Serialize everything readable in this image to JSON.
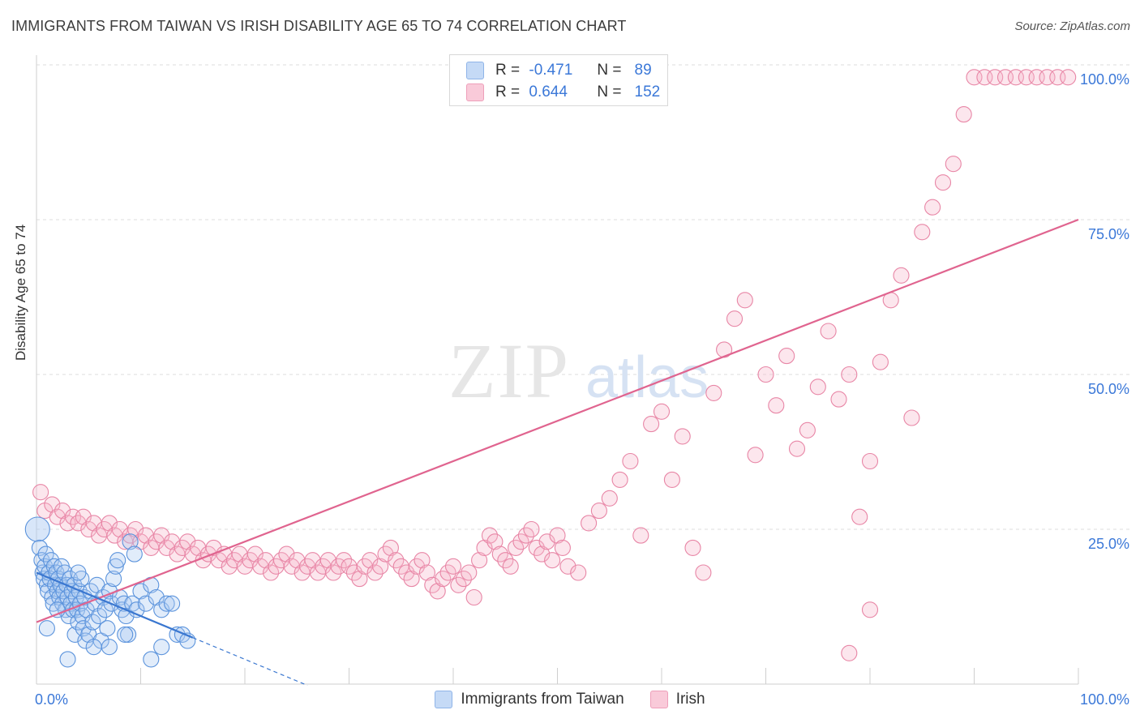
{
  "header": {
    "title": "IMMIGRANTS FROM TAIWAN VS IRISH DISABILITY AGE 65 TO 74 CORRELATION CHART",
    "source": "Source: ZipAtlas.com"
  },
  "watermark": {
    "zip": "ZIP",
    "atlas": "atlas"
  },
  "stats_legend": {
    "rows": [
      {
        "r_label": "R =",
        "r_value": "-0.471",
        "n_label": "N =",
        "n_value": "89",
        "color": "#a9c8f2"
      },
      {
        "r_label": "R =",
        "r_value": "0.644",
        "n_label": "N =",
        "n_value": "152",
        "color": "#f6b8cc"
      }
    ]
  },
  "legend": {
    "taiwan": "Immigrants from Taiwan",
    "irish": "Irish"
  },
  "colors": {
    "taiwan_fill": "#a9c8f2",
    "taiwan_stroke": "#5b93dc",
    "taiwan_line": "#3a77d0",
    "irish_fill": "#f6b8cc",
    "irish_stroke": "#e886a6",
    "irish_line": "#e0648f",
    "tick_text": "#3b78d8"
  },
  "chart_data": {
    "type": "scatter",
    "xlabel": "",
    "ylabel": "Disability Age 65 to 74",
    "xlim": [
      0,
      100
    ],
    "ylim": [
      0,
      100
    ],
    "x_tick_labels": [
      "0.0%",
      "100.0%"
    ],
    "y_tick_labels": [
      {
        "v": 25,
        "label": "25.0%"
      },
      {
        "v": 50,
        "label": "50.0%"
      },
      {
        "v": 75,
        "label": "75.0%"
      },
      {
        "v": 100,
        "label": "100.0%"
      }
    ],
    "grid": true,
    "series": [
      {
        "name": "Immigrants from Taiwan",
        "trend": {
          "x0": 0,
          "y0": 18.0,
          "x1": 15,
          "y1": 7.5,
          "dash_to_x": 26
        },
        "points": [
          [
            0.1,
            25
          ],
          [
            0.3,
            22
          ],
          [
            0.5,
            20
          ],
          [
            0.6,
            18
          ],
          [
            0.7,
            17
          ],
          [
            0.8,
            19
          ],
          [
            0.9,
            21
          ],
          [
            1.0,
            16
          ],
          [
            1.1,
            15
          ],
          [
            1.2,
            18
          ],
          [
            1.3,
            17
          ],
          [
            1.4,
            20
          ],
          [
            1.5,
            14
          ],
          [
            1.6,
            13
          ],
          [
            1.7,
            19
          ],
          [
            1.8,
            16
          ],
          [
            1.9,
            18
          ],
          [
            2.0,
            15
          ],
          [
            2.1,
            17
          ],
          [
            2.2,
            14
          ],
          [
            2.3,
            16
          ],
          [
            2.4,
            19
          ],
          [
            2.5,
            13
          ],
          [
            2.6,
            15
          ],
          [
            2.7,
            18
          ],
          [
            2.8,
            12
          ],
          [
            2.9,
            16
          ],
          [
            3.0,
            14
          ],
          [
            3.1,
            11
          ],
          [
            3.2,
            17
          ],
          [
            3.3,
            13
          ],
          [
            3.4,
            15
          ],
          [
            3.5,
            12
          ],
          [
            3.6,
            16
          ],
          [
            3.7,
            8
          ],
          [
            3.8,
            14
          ],
          [
            3.9,
            12
          ],
          [
            4.0,
            10
          ],
          [
            4.1,
            15
          ],
          [
            4.2,
            13
          ],
          [
            4.3,
            17
          ],
          [
            4.4,
            11
          ],
          [
            4.5,
            9
          ],
          [
            4.6,
            14
          ],
          [
            4.7,
            7
          ],
          [
            4.8,
            12
          ],
          [
            5.0,
            8
          ],
          [
            5.2,
            15
          ],
          [
            5.4,
            10
          ],
          [
            5.6,
            13
          ],
          [
            5.8,
            16
          ],
          [
            6.0,
            11
          ],
          [
            6.2,
            7
          ],
          [
            6.4,
            14
          ],
          [
            6.6,
            12
          ],
          [
            6.8,
            9
          ],
          [
            7.0,
            15
          ],
          [
            7.2,
            13
          ],
          [
            7.4,
            17
          ],
          [
            7.6,
            19
          ],
          [
            7.8,
            20
          ],
          [
            8.0,
            14
          ],
          [
            8.2,
            12
          ],
          [
            8.4,
            13
          ],
          [
            8.6,
            11
          ],
          [
            8.8,
            8
          ],
          [
            9.0,
            23
          ],
          [
            9.2,
            13
          ],
          [
            9.4,
            21
          ],
          [
            9.6,
            12
          ],
          [
            10.0,
            15
          ],
          [
            10.5,
            13
          ],
          [
            11.0,
            16
          ],
          [
            11.5,
            14
          ],
          [
            12.0,
            12
          ],
          [
            12.5,
            13
          ],
          [
            13.0,
            13
          ],
          [
            13.5,
            8
          ],
          [
            14.0,
            8
          ],
          [
            14.5,
            7
          ],
          [
            1.0,
            9
          ],
          [
            2.0,
            12
          ],
          [
            3.0,
            4
          ],
          [
            4.0,
            18
          ],
          [
            5.5,
            6
          ],
          [
            7.0,
            6
          ],
          [
            8.5,
            8
          ],
          [
            11.0,
            4
          ],
          [
            12.0,
            6
          ]
        ]
      },
      {
        "name": "Irish",
        "trend": {
          "x0": 0,
          "y0": 10.0,
          "x1": 100,
          "y1": 75.0
        },
        "points": [
          [
            0.4,
            31
          ],
          [
            0.8,
            28
          ],
          [
            1.5,
            29
          ],
          [
            2.0,
            27
          ],
          [
            2.5,
            28
          ],
          [
            3.0,
            26
          ],
          [
            3.5,
            27
          ],
          [
            4.0,
            26
          ],
          [
            4.5,
            27
          ],
          [
            5.0,
            25
          ],
          [
            5.5,
            26
          ],
          [
            6.0,
            24
          ],
          [
            6.5,
            25
          ],
          [
            7.0,
            26
          ],
          [
            7.5,
            24
          ],
          [
            8.0,
            25
          ],
          [
            8.5,
            23
          ],
          [
            9.0,
            24
          ],
          [
            9.5,
            25
          ],
          [
            10.0,
            23
          ],
          [
            10.5,
            24
          ],
          [
            11.0,
            22
          ],
          [
            11.5,
            23
          ],
          [
            12.0,
            24
          ],
          [
            12.5,
            22
          ],
          [
            13.0,
            23
          ],
          [
            13.5,
            21
          ],
          [
            14.0,
            22
          ],
          [
            14.5,
            23
          ],
          [
            15.0,
            21
          ],
          [
            15.5,
            22
          ],
          [
            16.0,
            20
          ],
          [
            16.5,
            21
          ],
          [
            17.0,
            22
          ],
          [
            17.5,
            20
          ],
          [
            18.0,
            21
          ],
          [
            18.5,
            19
          ],
          [
            19.0,
            20
          ],
          [
            19.5,
            21
          ],
          [
            20.0,
            19
          ],
          [
            20.5,
            20
          ],
          [
            21.0,
            21
          ],
          [
            21.5,
            19
          ],
          [
            22.0,
            20
          ],
          [
            22.5,
            18
          ],
          [
            23.0,
            19
          ],
          [
            23.5,
            20
          ],
          [
            24.0,
            21
          ],
          [
            24.5,
            19
          ],
          [
            25.0,
            20
          ],
          [
            25.5,
            18
          ],
          [
            26.0,
            19
          ],
          [
            26.5,
            20
          ],
          [
            27.0,
            18
          ],
          [
            27.5,
            19
          ],
          [
            28.0,
            20
          ],
          [
            28.5,
            18
          ],
          [
            29.0,
            19
          ],
          [
            29.5,
            20
          ],
          [
            30.0,
            19
          ],
          [
            30.5,
            18
          ],
          [
            31.0,
            17
          ],
          [
            31.5,
            19
          ],
          [
            32.0,
            20
          ],
          [
            32.5,
            18
          ],
          [
            33.0,
            19
          ],
          [
            33.5,
            21
          ],
          [
            34.0,
            22
          ],
          [
            34.5,
            20
          ],
          [
            35.0,
            19
          ],
          [
            35.5,
            18
          ],
          [
            36.0,
            17
          ],
          [
            36.5,
            19
          ],
          [
            37.0,
            20
          ],
          [
            37.5,
            18
          ],
          [
            38.0,
            16
          ],
          [
            38.5,
            15
          ],
          [
            39.0,
            17
          ],
          [
            39.5,
            18
          ],
          [
            40.0,
            19
          ],
          [
            40.5,
            16
          ],
          [
            41.0,
            17
          ],
          [
            41.5,
            18
          ],
          [
            42.0,
            14
          ],
          [
            42.5,
            20
          ],
          [
            43.0,
            22
          ],
          [
            43.5,
            24
          ],
          [
            44.0,
            23
          ],
          [
            44.5,
            21
          ],
          [
            45.0,
            20
          ],
          [
            45.5,
            19
          ],
          [
            46.0,
            22
          ],
          [
            46.5,
            23
          ],
          [
            47.0,
            24
          ],
          [
            47.5,
            25
          ],
          [
            48.0,
            22
          ],
          [
            48.5,
            21
          ],
          [
            49.0,
            23
          ],
          [
            49.5,
            20
          ],
          [
            50.0,
            24
          ],
          [
            50.5,
            22
          ],
          [
            51.0,
            19
          ],
          [
            52.0,
            18
          ],
          [
            53.0,
            26
          ],
          [
            54.0,
            28
          ],
          [
            55.0,
            30
          ],
          [
            56.0,
            33
          ],
          [
            57.0,
            36
          ],
          [
            58.0,
            24
          ],
          [
            59.0,
            42
          ],
          [
            60.0,
            44
          ],
          [
            61.0,
            33
          ],
          [
            62.0,
            40
          ],
          [
            63.0,
            22
          ],
          [
            64.0,
            18
          ],
          [
            65.0,
            47
          ],
          [
            66.0,
            54
          ],
          [
            67.0,
            59
          ],
          [
            68.0,
            62
          ],
          [
            69.0,
            37
          ],
          [
            70.0,
            50
          ],
          [
            71.0,
            45
          ],
          [
            72.0,
            53
          ],
          [
            73.0,
            38
          ],
          [
            74.0,
            41
          ],
          [
            75.0,
            48
          ],
          [
            76.0,
            57
          ],
          [
            77.0,
            46
          ],
          [
            78.0,
            50
          ],
          [
            79.0,
            27
          ],
          [
            80.0,
            36
          ],
          [
            81.0,
            52
          ],
          [
            82.0,
            62
          ],
          [
            83.0,
            66
          ],
          [
            84.0,
            43
          ],
          [
            85.0,
            73
          ],
          [
            86.0,
            77
          ],
          [
            87.0,
            81
          ],
          [
            88.0,
            84
          ],
          [
            89.0,
            92
          ],
          [
            90.0,
            98
          ],
          [
            91.0,
            98
          ],
          [
            92.0,
            98
          ],
          [
            93.0,
            98
          ],
          [
            94.0,
            98
          ],
          [
            95.0,
            98
          ],
          [
            96.0,
            98
          ],
          [
            97.0,
            98
          ],
          [
            98.0,
            98
          ],
          [
            99.0,
            98
          ],
          [
            78.0,
            5
          ],
          [
            80.0,
            12
          ]
        ]
      }
    ]
  }
}
